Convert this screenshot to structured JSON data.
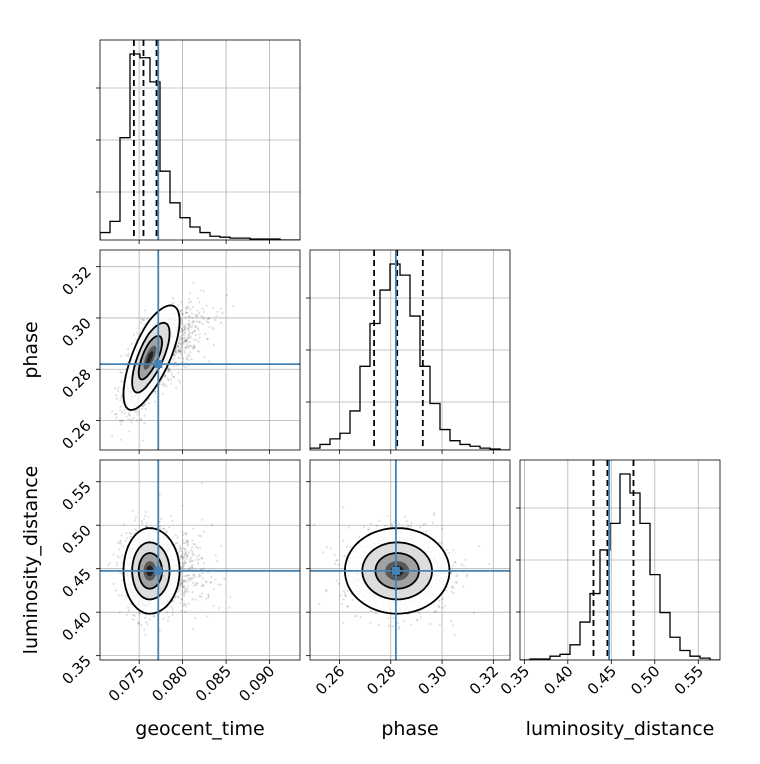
{
  "chart_data": {
    "type": "corner",
    "parameters": [
      {
        "name": "geocent_time",
        "label": "geocent_time",
        "range": [
          0.0705,
          0.0935
        ],
        "ticks": [
          0.075,
          0.08,
          0.085,
          0.09
        ],
        "tick_labels": [
          "0.075",
          "0.080",
          "0.085",
          "0.090"
        ],
        "truth": 0.0772,
        "quantiles": [
          0.0744,
          0.0755,
          0.077
        ]
      },
      {
        "name": "phase",
        "label": "phase",
        "range": [
          0.2485,
          0.3265
        ],
        "ticks": [
          0.26,
          0.28,
          0.3,
          0.32
        ],
        "tick_labels": [
          "0.26",
          "0.28",
          "0.30",
          "0.32"
        ],
        "truth": 0.282,
        "quantiles": [
          0.2735,
          0.2825,
          0.2925
        ]
      },
      {
        "name": "luminosity_distance",
        "label": "luminosity_distance",
        "range": [
          0.345,
          0.575
        ],
        "ticks": [
          0.35,
          0.4,
          0.45,
          0.5,
          0.55
        ],
        "tick_labels": [
          "0.35",
          "0.40",
          "0.45",
          "0.50",
          "0.55"
        ],
        "truth": 0.4475,
        "quantiles": [
          0.4295,
          0.4455,
          0.4755
        ]
      }
    ],
    "histograms": {
      "geocent_time": {
        "edges_start": 0.0705,
        "bin_width": 0.00115,
        "counts": [
          4,
          10,
          55,
          100,
          98,
          85,
          37,
          20,
          12,
          7,
          4,
          2,
          1.5,
          1,
          1,
          0.5,
          0.5,
          0.5,
          0,
          0
        ]
      },
      "phase": {
        "edges_start": 0.2485,
        "bin_width": 0.0039,
        "counts": [
          1,
          3,
          6,
          9,
          21,
          45,
          68,
          86,
          100,
          94,
          72,
          45,
          25,
          11,
          5,
          3,
          2,
          1,
          0.5,
          0
        ]
      },
      "luminosity_distance": {
        "edges_start": 0.345,
        "bin_width": 0.0115,
        "counts": [
          0,
          0.5,
          0.5,
          2,
          3,
          8,
          20,
          35,
          58,
          72,
          98,
          88,
          72,
          45,
          25,
          12,
          5,
          2,
          1,
          0
        ]
      }
    },
    "contours_2d": [
      {
        "x": "geocent_time",
        "y": "phase",
        "center": [
          0.0762,
          0.2845
        ],
        "correlation": 0.7,
        "sigma": [
          0.00125,
          0.0085
        ],
        "levels": [
          1,
          1.6,
          2.4
        ]
      },
      {
        "x": "geocent_time",
        "y": "luminosity_distance",
        "center": [
          0.0762,
          0.4475
        ],
        "correlation": 0.0,
        "sigma": [
          0.00125,
          0.0205
        ],
        "levels": [
          1,
          1.6,
          2.4
        ]
      },
      {
        "x": "phase",
        "y": "luminosity_distance",
        "center": [
          0.2825,
          0.4475
        ],
        "correlation": 0.0,
        "sigma": [
          0.0085,
          0.0205
        ],
        "levels": [
          1,
          1.6,
          2.4
        ]
      }
    ],
    "truth_color": "#4682b4",
    "quantile_line_style": "dashed",
    "grid": true
  }
}
